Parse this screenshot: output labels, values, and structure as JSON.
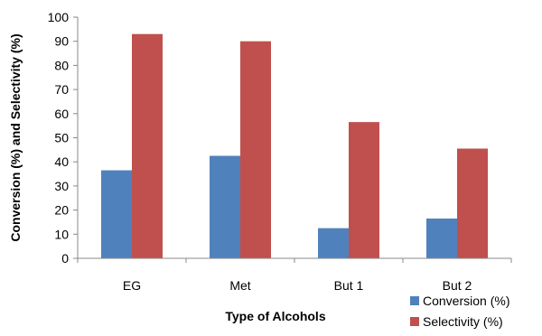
{
  "chart_data": {
    "type": "bar",
    "categories": [
      "EG",
      "Met",
      "But 1",
      "But 2"
    ],
    "series": [
      {
        "name": "Conversion (%)",
        "values": [
          36.5,
          42.5,
          12.5,
          16.5
        ],
        "color": "#4f81bd"
      },
      {
        "name": "Selectivity (%)",
        "values": [
          93,
          90,
          56.5,
          45.5
        ],
        "color": "#c0504d"
      }
    ],
    "xlabel": "Type of Alcohols",
    "ylabel": "Conversion (%) and Selectivity (%)",
    "ylim": [
      0,
      100
    ],
    "yticks": [
      "0",
      "10",
      "20",
      "30",
      "40",
      "50",
      "60",
      "70",
      "80",
      "90",
      "100"
    ],
    "grid": false,
    "legend_position": "bottom-right"
  }
}
